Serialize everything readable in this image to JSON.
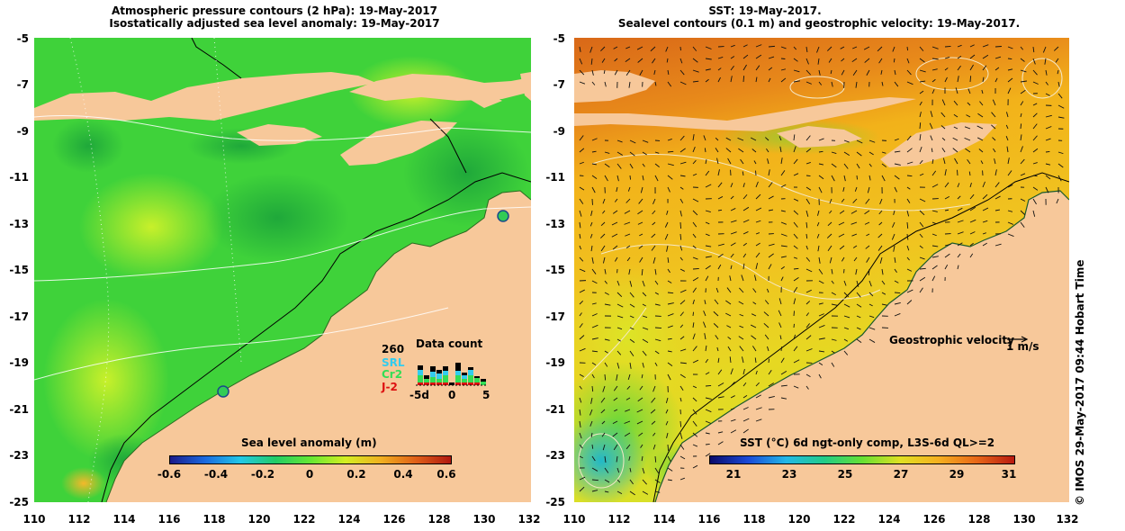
{
  "left_panel": {
    "title_line1": "Atmospheric pressure contours (2 hPa): 19-May-2017",
    "title_line2": "Isostatically adjusted sea level anomaly: 19-May-2017",
    "y_ticks": [
      "-5",
      "-7",
      "-9",
      "-11",
      "-13",
      "-15",
      "-17",
      "-19",
      "-21",
      "-23",
      "-25"
    ],
    "x_ticks": [
      "110",
      "112",
      "114",
      "116",
      "118",
      "120",
      "122",
      "124",
      "126",
      "128",
      "130",
      "132"
    ],
    "colorbar_title": "Sea level anomaly (m)",
    "colorbar_ticks": [
      "-0.6",
      "-0.4",
      "-0.2",
      "0",
      "0.2",
      "0.4",
      "0.6"
    ],
    "data_count": {
      "title": "Data count",
      "labels": [
        "260",
        "SRL",
        "Cr2",
        "J-2"
      ],
      "label_colors": [
        "#000000",
        "#33ccee",
        "#33dd55",
        "#dd1111"
      ],
      "axis_ticks": [
        "-5d",
        "0",
        "5"
      ],
      "bars": [
        {
          "red": 3,
          "green": 8,
          "cyan": 6,
          "black": 5
        },
        {
          "red": 3,
          "green": 4,
          "cyan": 0,
          "black": 4
        },
        {
          "red": 3,
          "green": 6,
          "cyan": 6,
          "black": 6
        },
        {
          "red": 3,
          "green": 4,
          "cyan": 6,
          "black": 4
        },
        {
          "red": 3,
          "green": 8,
          "cyan": 5,
          "black": 5
        },
        {
          "red": 0,
          "green": 0,
          "cyan": 0,
          "black": 3
        },
        {
          "red": 3,
          "green": 8,
          "cyan": 5,
          "black": 9
        },
        {
          "red": 3,
          "green": 4,
          "cyan": 4,
          "black": 3
        },
        {
          "red": 3,
          "green": 8,
          "cyan": 6,
          "black": 3
        },
        {
          "red": 3,
          "green": 5,
          "cyan": 0,
          "black": 2
        },
        {
          "red": 0,
          "green": 4,
          "cyan": 0,
          "black": 3
        }
      ]
    }
  },
  "right_panel": {
    "title_line1": "SST: 19-May-2017.",
    "title_line2": "Sealevel contours (0.1 m) and geostrophic velocity: 19-May-2017.",
    "y_ticks": [
      "-5",
      "-7",
      "-9",
      "-11",
      "-13",
      "-15",
      "-17",
      "-19",
      "-21",
      "-23",
      "-25"
    ],
    "x_ticks": [
      "110",
      "112",
      "114",
      "116",
      "118",
      "120",
      "122",
      "124",
      "126",
      "128",
      "130",
      "132"
    ],
    "colorbar_title": "SST (°C) 6d ngt-only comp, L3S-6d QL>=2",
    "colorbar_ticks": [
      "21",
      "23",
      "25",
      "27",
      "29",
      "31"
    ],
    "velocity_label": "Geostrophic velocity",
    "velocity_scale": "1 m/s"
  },
  "side_stamp": "© IMOS 29-May-2017 09:44 Hobart Time",
  "colors": {
    "land": "#f7c89a",
    "sla_green": "#33cc33",
    "sst_orange": "#e8891a"
  }
}
